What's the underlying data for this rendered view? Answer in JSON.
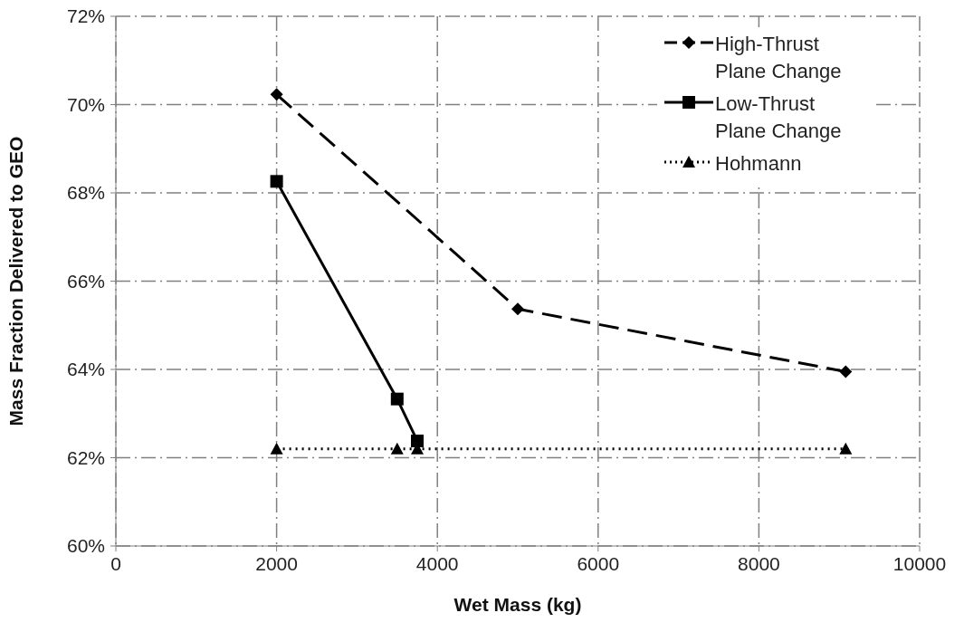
{
  "chart_data": {
    "type": "line",
    "xlabel": "Wet Mass (kg)",
    "ylabel": "Mass Fraction Delivered to GEO",
    "xlim": [
      0,
      10000
    ],
    "xticks": [
      0,
      2000,
      4000,
      6000,
      8000,
      10000
    ],
    "ylim": [
      60,
      72
    ],
    "yticks": [
      {
        "value": 60,
        "label": "60%"
      },
      {
        "value": 62,
        "label": "62%"
      },
      {
        "value": 64,
        "label": "64%"
      },
      {
        "value": 66,
        "label": "66%"
      },
      {
        "value": 68,
        "label": "68%"
      },
      {
        "value": 70,
        "label": "70%"
      },
      {
        "value": 72,
        "label": "72%"
      }
    ],
    "grid": true,
    "legend": "top right",
    "series": [
      {
        "name": "High-Thrust Plane Change",
        "color": "#000000",
        "marker": "diamond",
        "line_style": "dashed",
        "x": [
          2000,
          5000,
          9080
        ],
        "values": [
          70.23,
          65.37,
          63.95
        ]
      },
      {
        "name": "Low-Thrust Plane Change",
        "color": "#000000",
        "marker": "square",
        "line_style": "solid",
        "x": [
          2000,
          3500,
          3750
        ],
        "values": [
          68.26,
          63.33,
          62.38
        ]
      },
      {
        "name": "Hohmann",
        "color": "#000000",
        "marker": "triangle",
        "line_style": "dotted",
        "x": [
          2000,
          3500,
          3750,
          9080
        ],
        "values": [
          62.2,
          62.2,
          62.2,
          62.2
        ]
      }
    ]
  }
}
